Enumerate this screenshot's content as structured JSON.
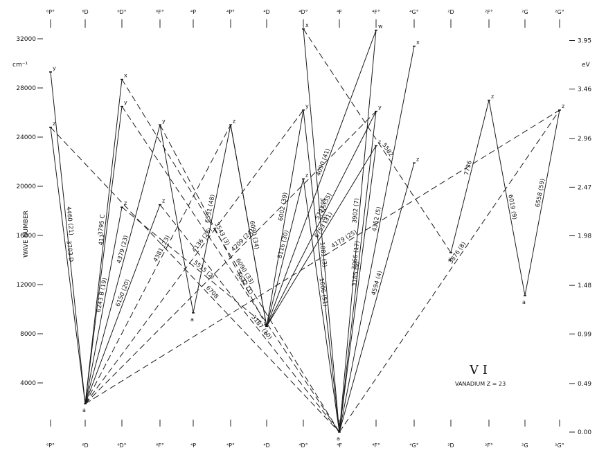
{
  "chart_data": {
    "type": "grotrian-diagram",
    "title": "V I",
    "subtitle": "VANADIUM  Z = 23",
    "ylabel": "WAVE NUMBER",
    "y_unit": "cm⁻¹",
    "y2_unit": "eV",
    "ylim": [
      0,
      33000
    ],
    "y_ticks": [
      4000,
      8000,
      12000,
      16000,
      20000,
      24000,
      28000,
      32000
    ],
    "ev_ticks": [
      {
        "label": "0.00",
        "cm": 0
      },
      {
        "label": "0.49",
        "cm": 3950
      },
      {
        "label": "0.99",
        "cm": 7985
      },
      {
        "label": "1.48",
        "cm": 11937
      },
      {
        "label": "1.98",
        "cm": 15970
      },
      {
        "label": "2.47",
        "cm": 19922
      },
      {
        "label": "2.96",
        "cm": 23874
      },
      {
        "label": "3.46",
        "cm": 27906
      },
      {
        "label": "3.95",
        "cm": 31858
      }
    ],
    "columns": [
      "⁶P°",
      "⁶D",
      "⁶D°",
      "⁶F°",
      "⁴P",
      "⁴P°",
      "⁴D",
      "⁴D°",
      "⁴F",
      "⁴F°",
      "⁴G°",
      "²D",
      "²F°",
      "²G",
      "²G°"
    ],
    "levels": [
      {
        "id": "6D_a",
        "col": 1,
        "cm": 2300,
        "label": "a"
      },
      {
        "id": "4F_a",
        "col": 8,
        "cm": 0,
        "label": "a"
      },
      {
        "id": "4D_a",
        "col": 6,
        "cm": 8600,
        "label": "a"
      },
      {
        "id": "4P_a",
        "col": 4,
        "cm": 9700,
        "label": "a"
      },
      {
        "id": "2D_a",
        "col": 11,
        "cm": 14600,
        "label": "a"
      },
      {
        "id": "2G_a",
        "col": 13,
        "cm": 11100,
        "label": "a"
      },
      {
        "id": "6P_y",
        "col": 0,
        "cm": 29300,
        "label": "y"
      },
      {
        "id": "6P_z",
        "col": 0,
        "cm": 24800,
        "label": "z"
      },
      {
        "id": "6D_x",
        "col": 2,
        "cm": 28700,
        "label": "x"
      },
      {
        "id": "6D_y",
        "col": 2,
        "cm": 26500,
        "label": "y"
      },
      {
        "id": "6D_z",
        "col": 2,
        "cm": 18300,
        "label": "z"
      },
      {
        "id": "6F_y",
        "col": 3,
        "cm": 25000,
        "label": "y"
      },
      {
        "id": "6F_z",
        "col": 3,
        "cm": 18500,
        "label": "z"
      },
      {
        "id": "4P_z",
        "col": 5,
        "cm": 25000,
        "label": "z"
      },
      {
        "id": "4D_x",
        "col": 7,
        "cm": 32800,
        "label": "x"
      },
      {
        "id": "4D_y",
        "col": 7,
        "cm": 26200,
        "label": "y"
      },
      {
        "id": "4D_z",
        "col": 7,
        "cm": 20600,
        "label": "z"
      },
      {
        "id": "4F_w",
        "col": 9,
        "cm": 32700,
        "label": "w"
      },
      {
        "id": "4F_y",
        "col": 9,
        "cm": 26100,
        "label": "y"
      },
      {
        "id": "4F_z",
        "col": 9,
        "cm": 23300,
        "label": "z"
      },
      {
        "id": "4G_x",
        "col": 10,
        "cm": 31400,
        "label": "x"
      },
      {
        "id": "4G_z",
        "col": 10,
        "cm": 21900,
        "label": "z"
      },
      {
        "id": "2F_z",
        "col": 12,
        "cm": 27000,
        "label": "z"
      },
      {
        "id": "2G_z",
        "col": 14,
        "cm": 26200,
        "label": "z"
      }
    ],
    "transitions": [
      {
        "from": "6D_a",
        "to": "6P_y",
        "style": "solid",
        "label": "4460 (21)"
      },
      {
        "from": "6D_a",
        "to": "6P_z",
        "style": "solid",
        "label": "3703 D"
      },
      {
        "from": "6D_a",
        "to": "6D_x",
        "style": "solid",
        "label": "3795 C"
      },
      {
        "from": "6D_a",
        "to": "6D_y",
        "style": "solid",
        "label": "411"
      },
      {
        "from": "6D_a",
        "to": "6D_z",
        "style": "solid",
        "label": "6243 B (19)"
      },
      {
        "from": "6D_a",
        "to": "6F_y",
        "style": "solid",
        "label": "4379 (23)"
      },
      {
        "from": "6D_a",
        "to": "6F_z",
        "style": "solid",
        "label": "6150 (20)"
      },
      {
        "from": "6D_a",
        "to": "4P_z",
        "style": "dashed",
        "label": "4381 (23)"
      },
      {
        "from": "6D_a",
        "to": "4D_y",
        "style": "dashed",
        "label": "4136 (26)"
      },
      {
        "from": "6D_a",
        "to": "4F_y",
        "style": "dashed",
        "label": "4209 (24)"
      },
      {
        "from": "6D_a",
        "to": "2G_z",
        "style": "dashed",
        "label": "4179 (25)"
      },
      {
        "from": "6P_z",
        "to": "4F_a",
        "style": "dashed",
        "label": "6708"
      },
      {
        "from": "6D_x",
        "to": "4F_a",
        "style": "dashed",
        "label": "6090 (33)"
      },
      {
        "from": "6D_y",
        "to": "4F_a",
        "style": "dashed",
        "label": "5632 (1)"
      },
      {
        "from": "6D_z",
        "to": "4D_a",
        "style": "dashed",
        "label": "5515 (2)"
      },
      {
        "from": "6F_y",
        "to": "4D_a",
        "style": "dashed",
        "label": "3543 (3)"
      },
      {
        "from": "6F_z",
        "to": "4F_a",
        "style": "dashed",
        "label": "3187 (10)"
      },
      {
        "from": "4P_a",
        "to": "6F_y",
        "style": "solid",
        "label": ""
      },
      {
        "from": "4P_a",
        "to": "4P_z",
        "style": "solid",
        "label": "6531 (48)"
      },
      {
        "from": "4P_z",
        "to": "4D_a",
        "style": "solid",
        "label": "6090 (34)"
      },
      {
        "from": "4D_a",
        "to": "4P_z",
        "style": "solid",
        "label": ""
      },
      {
        "from": "4D_a",
        "to": "4D_y",
        "style": "solid",
        "label": "6002 (39)"
      },
      {
        "from": "4D_a",
        "to": "4D_z",
        "style": "solid",
        "label": "8116 (30)"
      },
      {
        "from": "4D_a",
        "to": "4F_w",
        "style": "solid",
        "label": "4090 (41)"
      },
      {
        "from": "4D_a",
        "to": "4F_y",
        "style": "solid",
        "label": "5727 (35)"
      },
      {
        "from": "4D_a",
        "to": "4F_z",
        "style": "solid",
        "label": "6753 (31)"
      },
      {
        "from": "4F_a",
        "to": "4D_x",
        "style": "solid",
        "label": "3855 (6)"
      },
      {
        "from": "4F_a",
        "to": "4D_y",
        "style": "solid",
        "label": "1881 (3)"
      },
      {
        "from": "4F_a",
        "to": "4D_z",
        "style": "solid",
        "label": "1606 (51)"
      },
      {
        "from": "4F_a",
        "to": "4F_w",
        "style": "solid",
        "label": "3902 (7)"
      },
      {
        "from": "4F_a",
        "to": "4F_y",
        "style": "solid",
        "label": "3066 (17)"
      },
      {
        "from": "4F_a",
        "to": "4F_z",
        "style": "solid",
        "label": "3185 (4)"
      },
      {
        "from": "4F_a",
        "to": "4G_x",
        "style": "solid",
        "label": "4352 (5)"
      },
      {
        "from": "4F_a",
        "to": "4G_z",
        "style": "solid",
        "label": "4594 (4)"
      },
      {
        "from": "4D_x",
        "to": "2D_a",
        "style": "dashed",
        "label": "5582"
      },
      {
        "from": "4F_a",
        "to": "2G_z",
        "style": "dashed",
        "label": "3876 (8)"
      },
      {
        "from": "2D_a",
        "to": "2F_z",
        "style": "solid",
        "label": "7736"
      },
      {
        "from": "2F_z",
        "to": "2G_a",
        "style": "solid",
        "label": "6019 (9)"
      },
      {
        "from": "2G_a",
        "to": "2G_z",
        "style": "solid",
        "label": "6558 (59)"
      }
    ]
  }
}
